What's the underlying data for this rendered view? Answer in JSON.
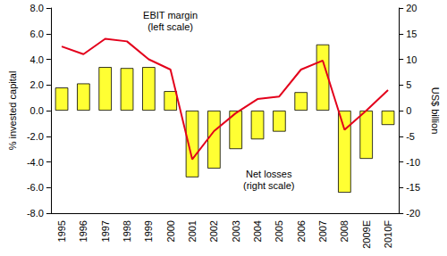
{
  "chart_data": {
    "type": "bar",
    "categories": [
      "1995",
      "1996",
      "1997",
      "1998",
      "1999",
      "2000",
      "2001",
      "2002",
      "2003",
      "2004",
      "2005",
      "2006",
      "2007",
      "2008",
      "2009E",
      "2010F"
    ],
    "series": [
      {
        "type": "line",
        "color": "#e3001b",
        "axis": "y",
        "values": [
          5.0,
          4.4,
          5.6,
          5.4,
          4.0,
          3.2,
          -3.8,
          -1.6,
          -0.2,
          0.9,
          1.1,
          3.2,
          3.9,
          -1.5,
          0.0,
          1.6
        ]
      },
      {
        "type": "bar",
        "color": "#ffff33",
        "axis": "y2",
        "values": [
          4.5,
          5.3,
          8.5,
          8.3,
          8.5,
          3.8,
          -13.0,
          -11.3,
          -7.5,
          -5.6,
          -4.1,
          3.6,
          12.9,
          -16.0,
          -9.4,
          -2.8
        ]
      }
    ],
    "y_label": "% invested capital",
    "y2_label": "US$ billion",
    "annotations": [
      "EBIT margin\n(left scale)",
      "Net losses\n(right scale)"
    ],
    "ylim": [
      -8,
      8
    ],
    "yticks": [
      {
        "value": -8,
        "label": "-8.0"
      },
      {
        "value": -6,
        "label": "-6.0"
      },
      {
        "value": -4,
        "label": "-4.0"
      },
      {
        "value": -2,
        "label": "-2.0"
      },
      {
        "value": 0,
        "label": "0.0"
      },
      {
        "value": 2,
        "label": "2.0"
      },
      {
        "value": 4,
        "label": "4.0"
      },
      {
        "value": 6,
        "label": "6.0"
      },
      {
        "value": 8,
        "label": "8.0"
      }
    ],
    "y2lim": [
      -20,
      20
    ],
    "y2ticks": [
      -20,
      -15,
      -10,
      -5,
      0,
      5,
      10,
      15,
      20
    ],
    "grid": false,
    "legend": "none"
  }
}
